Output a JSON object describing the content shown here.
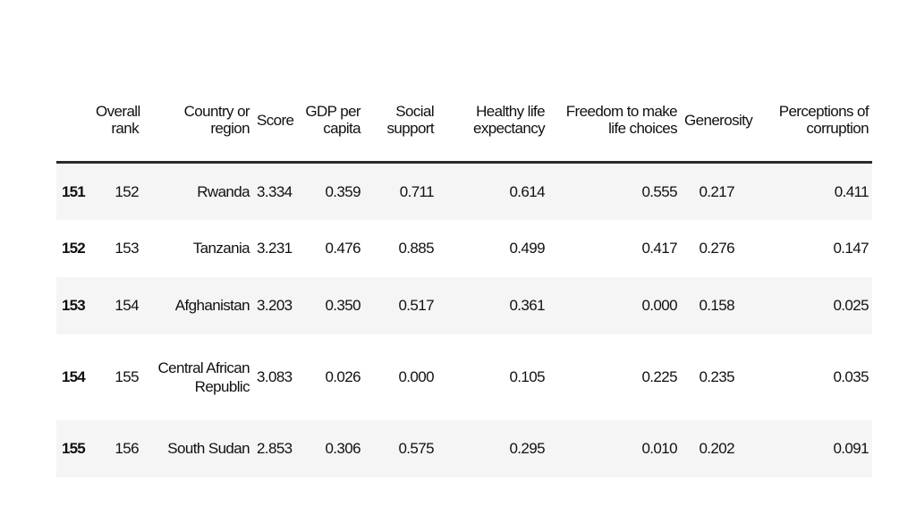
{
  "table": {
    "headers": [
      "",
      "Overall rank",
      "Country or region",
      "Score",
      "GDP per capita",
      "Social support",
      "Healthy life expectancy",
      "Freedom to make life choices",
      "Generosity",
      "Perceptions of corruption"
    ],
    "rows": [
      [
        "151",
        "152",
        "Rwanda",
        "3.334",
        "0.359",
        "0.711",
        "0.614",
        "0.555",
        "0.217",
        "0.411"
      ],
      [
        "152",
        "153",
        "Tanzania",
        "3.231",
        "0.476",
        "0.885",
        "0.499",
        "0.417",
        "0.276",
        "0.147"
      ],
      [
        "153",
        "154",
        "Afghanistan",
        "3.203",
        "0.350",
        "0.517",
        "0.361",
        "0.000",
        "0.158",
        "0.025"
      ],
      [
        "154",
        "155",
        "Central African Republic",
        "3.083",
        "0.026",
        "0.000",
        "0.105",
        "0.225",
        "0.235",
        "0.035"
      ],
      [
        "155",
        "156",
        "South Sudan",
        "2.853",
        "0.306",
        "0.575",
        "0.295",
        "0.010",
        "0.202",
        "0.091"
      ]
    ]
  }
}
